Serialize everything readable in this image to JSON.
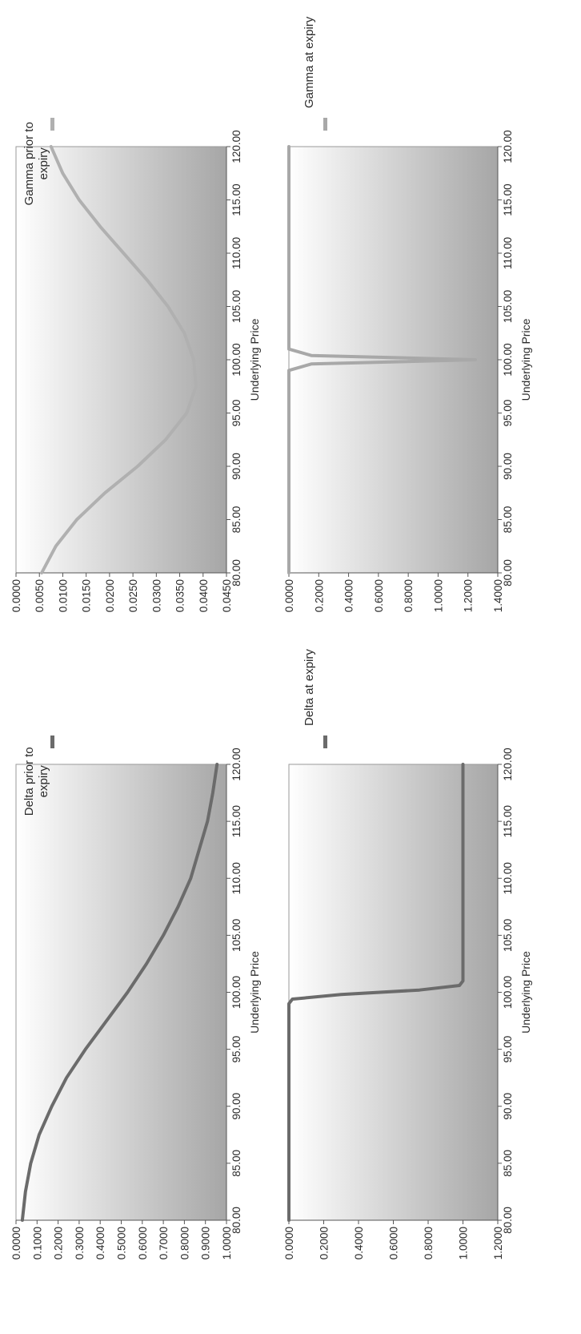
{
  "chart_data": [
    {
      "id": "delta-prior",
      "type": "line",
      "xlabel": "Underlying Price",
      "ylabel": "",
      "xlim": [
        80,
        120
      ],
      "ylim": [
        0,
        1
      ],
      "x_ticks": [
        "80.00",
        "85.00",
        "90.00",
        "95.00",
        "100.00",
        "105.00",
        "110.00",
        "115.00",
        "120.00"
      ],
      "y_ticks": [
        "0.0000",
        "0.1000",
        "0.2000",
        "0.3000",
        "0.4000",
        "0.5000",
        "0.6000",
        "0.7000",
        "0.8000",
        "0.9000",
        "1.0000"
      ],
      "legend": "right",
      "color": "#6b6b6b",
      "series": [
        {
          "name": "Delta prior to expiry",
          "x": [
            80,
            82.5,
            85,
            87.5,
            90,
            92.5,
            95,
            97.5,
            100,
            102.5,
            105,
            107.5,
            110,
            112.5,
            115,
            117.5,
            120
          ],
          "y": [
            0.03,
            0.045,
            0.07,
            0.11,
            0.17,
            0.24,
            0.33,
            0.43,
            0.53,
            0.62,
            0.7,
            0.77,
            0.83,
            0.87,
            0.91,
            0.935,
            0.955
          ]
        }
      ]
    },
    {
      "id": "delta-expiry",
      "type": "line",
      "xlabel": "Underlying Price",
      "ylabel": "",
      "xlim": [
        80,
        120
      ],
      "ylim": [
        0,
        1.2
      ],
      "x_ticks": [
        "80.00",
        "85.00",
        "90.00",
        "95.00",
        "100.00",
        "105.00",
        "110.00",
        "115.00",
        "120.00"
      ],
      "y_ticks": [
        "0.0000",
        "0.2000",
        "0.4000",
        "0.6000",
        "0.8000",
        "1.0000",
        "1.2000"
      ],
      "legend": "right",
      "color": "#6b6b6b",
      "series": [
        {
          "name": "Delta at expiry",
          "x": [
            80,
            90,
            99,
            99.4,
            99.8,
            100.2,
            100.6,
            101,
            110,
            120
          ],
          "y": [
            0,
            0,
            0,
            0.02,
            0.3,
            0.75,
            0.98,
            1,
            1,
            1
          ]
        }
      ]
    },
    {
      "id": "gamma-prior",
      "type": "line",
      "xlabel": "Underlying Price",
      "ylabel": "",
      "xlim": [
        80,
        120
      ],
      "ylim": [
        0,
        0.045
      ],
      "x_ticks": [
        "80.00",
        "85.00",
        "90.00",
        "95.00",
        "100.00",
        "105.00",
        "110.00",
        "115.00",
        "120.00"
      ],
      "y_ticks": [
        "0.0000",
        "0.0050",
        "0.0100",
        "0.0150",
        "0.0200",
        "0.0250",
        "0.0300",
        "0.0350",
        "0.0400",
        "0.0450"
      ],
      "legend": "right",
      "color": "#b0b0b0",
      "series": [
        {
          "name": "Gamma prior to expiry",
          "x": [
            80,
            82.5,
            85,
            87.5,
            90,
            92.5,
            95,
            97.5,
            100,
            102.5,
            105,
            107.5,
            110,
            112.5,
            115,
            117.5,
            120
          ],
          "y": [
            0.0055,
            0.0085,
            0.013,
            0.019,
            0.026,
            0.032,
            0.0365,
            0.0385,
            0.038,
            0.036,
            0.0325,
            0.028,
            0.023,
            0.018,
            0.0135,
            0.01,
            0.0075
          ]
        }
      ]
    },
    {
      "id": "gamma-expiry",
      "type": "line",
      "xlabel": "Underlying Price",
      "ylabel": "",
      "xlim": [
        80,
        120
      ],
      "ylim": [
        0,
        1.4
      ],
      "x_ticks": [
        "80.00",
        "85.00",
        "90.00",
        "95.00",
        "100.00",
        "105.00",
        "110.00",
        "115.00",
        "120.00"
      ],
      "y_ticks": [
        "0.0000",
        "0.2000",
        "0.4000",
        "0.6000",
        "0.8000",
        "1.0000",
        "1.2000",
        "1.4000"
      ],
      "legend": "right",
      "color": "#a8a8a8",
      "series": [
        {
          "name": "Gamma at expiry",
          "x": [
            80,
            99,
            99.6,
            100,
            100.4,
            101,
            120
          ],
          "y": [
            0,
            0,
            0.15,
            1.25,
            0.15,
            0,
            0
          ]
        }
      ]
    }
  ]
}
